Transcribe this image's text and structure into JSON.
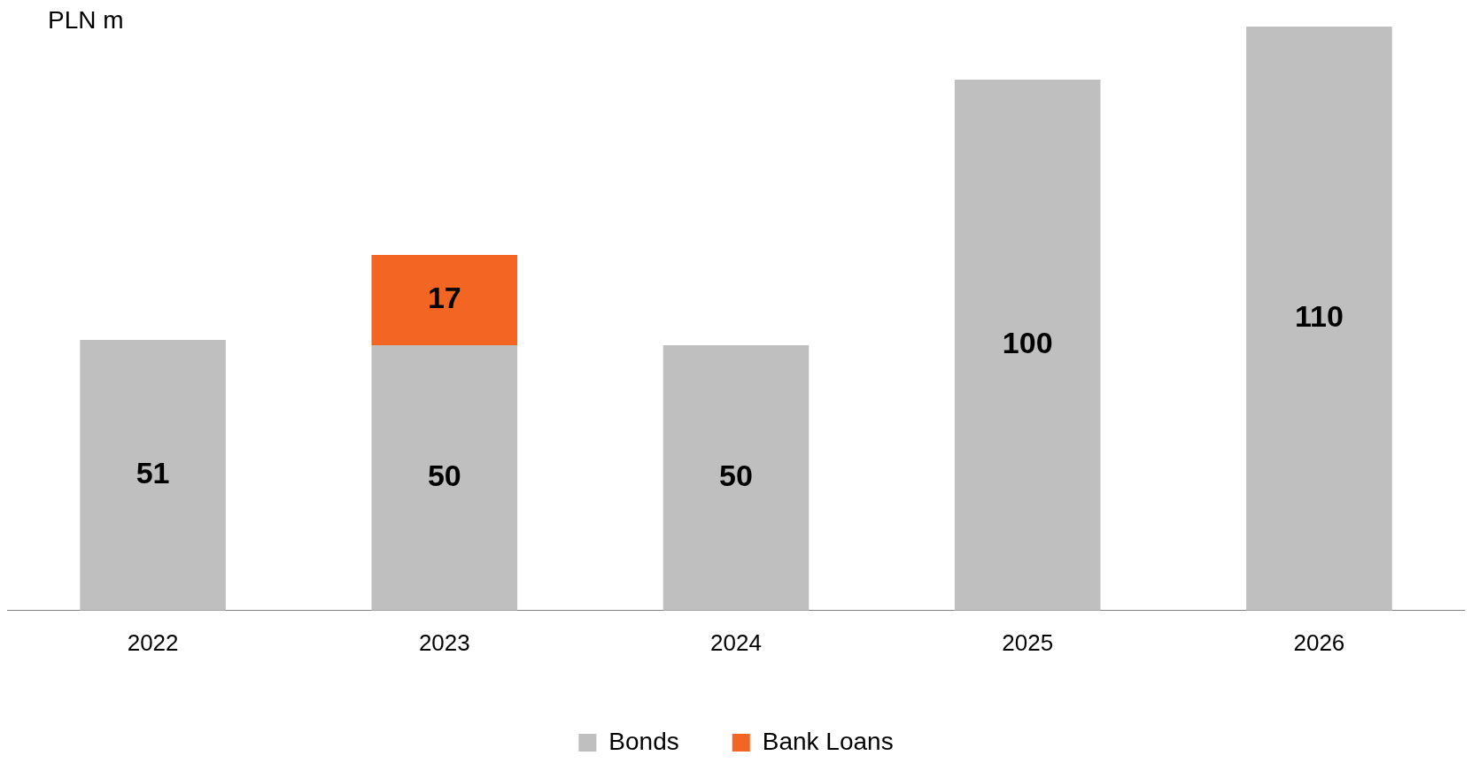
{
  "chart_data": {
    "type": "bar",
    "ylabel": "PLN m",
    "categories": [
      "2022",
      "2023",
      "2024",
      "2025",
      "2026"
    ],
    "stacked": true,
    "data_labels": true,
    "legend": "bottom",
    "grid": false,
    "series": [
      {
        "name": "Bonds",
        "color": "#bfbfbf",
        "values": [
          51,
          50,
          50,
          100,
          110
        ]
      },
      {
        "name": "Bank Loans",
        "color": "#f26522",
        "values": [
          null,
          17,
          null,
          null,
          null
        ]
      }
    ]
  }
}
